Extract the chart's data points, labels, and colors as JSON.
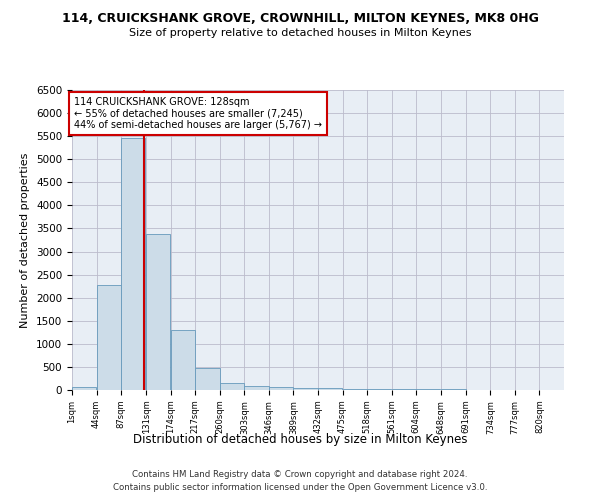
{
  "title1": "114, CRUICKSHANK GROVE, CROWNHILL, MILTON KEYNES, MK8 0HG",
  "title2": "Size of property relative to detached houses in Milton Keynes",
  "xlabel": "Distribution of detached houses by size in Milton Keynes",
  "ylabel": "Number of detached properties",
  "footnote1": "Contains HM Land Registry data © Crown copyright and database right 2024.",
  "footnote2": "Contains public sector information licensed under the Open Government Licence v3.0.",
  "bins": [
    1,
    44,
    87,
    131,
    174,
    217,
    260,
    303,
    346,
    389,
    432,
    475,
    518,
    561,
    604,
    648,
    691,
    734,
    777,
    820,
    863
  ],
  "bar_heights": [
    75,
    2270,
    5450,
    3380,
    1310,
    480,
    160,
    85,
    55,
    40,
    35,
    30,
    25,
    20,
    15,
    12,
    10,
    8,
    6,
    5
  ],
  "bar_color": "#ccdce8",
  "bar_edge_color": "#6699bb",
  "vline_color": "#cc0000",
  "vline_x": 128,
  "annotation_line1": "114 CRUICKSHANK GROVE: 128sqm",
  "annotation_line2": "← 55% of detached houses are smaller (7,245)",
  "annotation_line3": "44% of semi-detached houses are larger (5,767) →",
  "annotation_box_color": "#ffffff",
  "annotation_box_edge": "#cc0000",
  "ylim": [
    0,
    6500
  ],
  "yticks": [
    0,
    500,
    1000,
    1500,
    2000,
    2500,
    3000,
    3500,
    4000,
    4500,
    5000,
    5500,
    6000,
    6500
  ],
  "grid_color": "#bbbbcc",
  "bg_color": "#e8eef5",
  "fig_width": 6.0,
  "fig_height": 5.0,
  "dpi": 100
}
